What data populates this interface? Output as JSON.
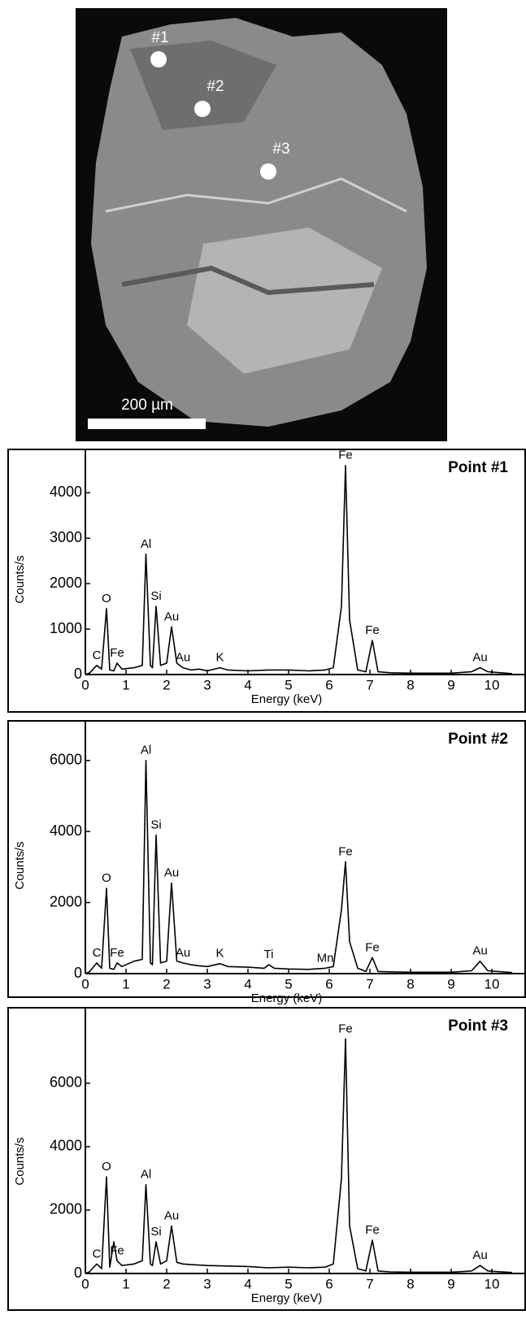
{
  "image": {
    "points": [
      "#1",
      "#2",
      "#3"
    ],
    "scale_bar": "200 µm"
  },
  "chart_data": [
    {
      "type": "line",
      "title": "Point #1",
      "x_label": "Energy (keV)",
      "y_label": "Counts/s",
      "color": "#000000",
      "xlim": [
        0,
        10.5
      ],
      "xticks": [
        0,
        1,
        2,
        3,
        4,
        5,
        6,
        7,
        8,
        9,
        10
      ],
      "ylim": [
        0,
        4900
      ],
      "yticks": [
        0,
        1000,
        2000,
        3000,
        4000
      ],
      "x": [
        0,
        0.1,
        0.28,
        0.4,
        0.52,
        0.6,
        0.7,
        0.78,
        0.9,
        1.2,
        1.4,
        1.49,
        1.6,
        1.65,
        1.74,
        1.85,
        2.0,
        2.12,
        2.25,
        2.4,
        2.6,
        2.8,
        3.0,
        3.31,
        3.5,
        4.0,
        4.5,
        5.0,
        5.5,
        5.9,
        6.1,
        6.3,
        6.4,
        6.5,
        6.7,
        6.9,
        7.06,
        7.2,
        7.5,
        8,
        9,
        9.5,
        9.71,
        9.9,
        10.5
      ],
      "values": [
        0,
        30,
        200,
        120,
        1450,
        100,
        80,
        250,
        120,
        150,
        200,
        2650,
        200,
        150,
        1500,
        200,
        250,
        1050,
        250,
        150,
        100,
        120,
        80,
        150,
        100,
        80,
        100,
        100,
        80,
        100,
        150,
        1500,
        4600,
        1200,
        100,
        60,
        750,
        60,
        40,
        30,
        30,
        60,
        150,
        60,
        20
      ],
      "annotations": [
        {
          "text": "C",
          "x": 0.28
        },
        {
          "text": "O",
          "x": 0.52
        },
        {
          "text": "Fe",
          "x": 0.78
        },
        {
          "text": "Al",
          "x": 1.49
        },
        {
          "text": "Si",
          "x": 1.74
        },
        {
          "text": "Au",
          "x": 2.12
        },
        {
          "text": "Au",
          "x": 2.4
        },
        {
          "text": "K",
          "x": 3.31
        },
        {
          "text": "Fe",
          "x": 6.4
        },
        {
          "text": "Fe",
          "x": 7.06
        },
        {
          "text": "Au",
          "x": 9.71
        }
      ]
    },
    {
      "type": "line",
      "title": "Point #2",
      "x_label": "Energy (keV)",
      "y_label": "Counts/s",
      "color": "#000000",
      "xlim": [
        0,
        10.5
      ],
      "xticks": [
        0,
        1,
        2,
        3,
        4,
        5,
        6,
        7,
        8,
        9,
        10
      ],
      "ylim": [
        0,
        7000
      ],
      "yticks": [
        0,
        2000,
        4000,
        6000
      ],
      "x": [
        0,
        0.1,
        0.28,
        0.4,
        0.52,
        0.6,
        0.7,
        0.78,
        0.9,
        1.2,
        1.4,
        1.49,
        1.6,
        1.65,
        1.74,
        1.85,
        2.0,
        2.12,
        2.25,
        2.4,
        2.6,
        2.8,
        3.0,
        3.31,
        3.5,
        4.0,
        4.4,
        4.51,
        4.65,
        5.0,
        5.5,
        5.9,
        6.1,
        6.3,
        6.4,
        6.5,
        6.7,
        6.9,
        7.06,
        7.2,
        7.5,
        8,
        9,
        9.5,
        9.71,
        9.9,
        10.5
      ],
      "values": [
        0,
        50,
        300,
        150,
        2400,
        150,
        120,
        300,
        200,
        350,
        400,
        6000,
        300,
        250,
        3900,
        300,
        350,
        2550,
        350,
        300,
        250,
        220,
        200,
        280,
        200,
        180,
        150,
        250,
        150,
        130,
        120,
        150,
        200,
        1800,
        3150,
        900,
        150,
        60,
        450,
        60,
        50,
        40,
        40,
        80,
        350,
        80,
        30
      ],
      "annotations": [
        {
          "text": "C",
          "x": 0.28
        },
        {
          "text": "O",
          "x": 0.52
        },
        {
          "text": "Fe",
          "x": 0.78
        },
        {
          "text": "Al",
          "x": 1.49
        },
        {
          "text": "Si",
          "x": 1.74
        },
        {
          "text": "Au",
          "x": 2.12
        },
        {
          "text": "Au",
          "x": 2.4
        },
        {
          "text": "K",
          "x": 3.31
        },
        {
          "text": "Ti",
          "x": 4.51
        },
        {
          "text": "Mn",
          "x": 5.9
        },
        {
          "text": "Fe",
          "x": 6.4
        },
        {
          "text": "Fe",
          "x": 7.06
        },
        {
          "text": "Au",
          "x": 9.71
        }
      ]
    },
    {
      "type": "line",
      "title": "Point #3",
      "x_label": "Energy (keV)",
      "y_label": "Counts/s",
      "color": "#000000",
      "xlim": [
        0,
        10.5
      ],
      "xticks": [
        0,
        1,
        2,
        3,
        4,
        5,
        6,
        7,
        8,
        9,
        10
      ],
      "ylim": [
        0,
        8100
      ],
      "yticks": [
        0,
        2000,
        4000,
        6000
      ],
      "x": [
        0,
        0.1,
        0.28,
        0.4,
        0.52,
        0.6,
        0.7,
        0.78,
        0.9,
        1.2,
        1.4,
        1.49,
        1.6,
        1.65,
        1.74,
        1.85,
        2.0,
        2.12,
        2.25,
        2.4,
        2.6,
        3.0,
        4.0,
        4.5,
        5.0,
        5.5,
        5.9,
        6.1,
        6.3,
        6.4,
        6.5,
        6.7,
        6.9,
        7.06,
        7.2,
        7.5,
        8,
        9,
        9.5,
        9.71,
        9.9,
        10.5
      ],
      "values": [
        0,
        50,
        300,
        150,
        3050,
        200,
        1000,
        400,
        250,
        300,
        400,
        2800,
        300,
        250,
        1000,
        300,
        400,
        1500,
        350,
        300,
        280,
        250,
        220,
        180,
        200,
        180,
        200,
        300,
        3000,
        7400,
        1500,
        150,
        80,
        1050,
        80,
        50,
        40,
        40,
        80,
        250,
        80,
        30
      ],
      "annotations": [
        {
          "text": "C",
          "x": 0.28
        },
        {
          "text": "O",
          "x": 0.52
        },
        {
          "text": "Fe",
          "x": 0.78
        },
        {
          "text": "Al",
          "x": 1.49
        },
        {
          "text": "Si",
          "x": 1.74
        },
        {
          "text": "Au",
          "x": 2.12
        },
        {
          "text": "Fe",
          "x": 6.4
        },
        {
          "text": "Fe",
          "x": 7.06
        },
        {
          "text": "Au",
          "x": 9.71
        }
      ]
    }
  ]
}
